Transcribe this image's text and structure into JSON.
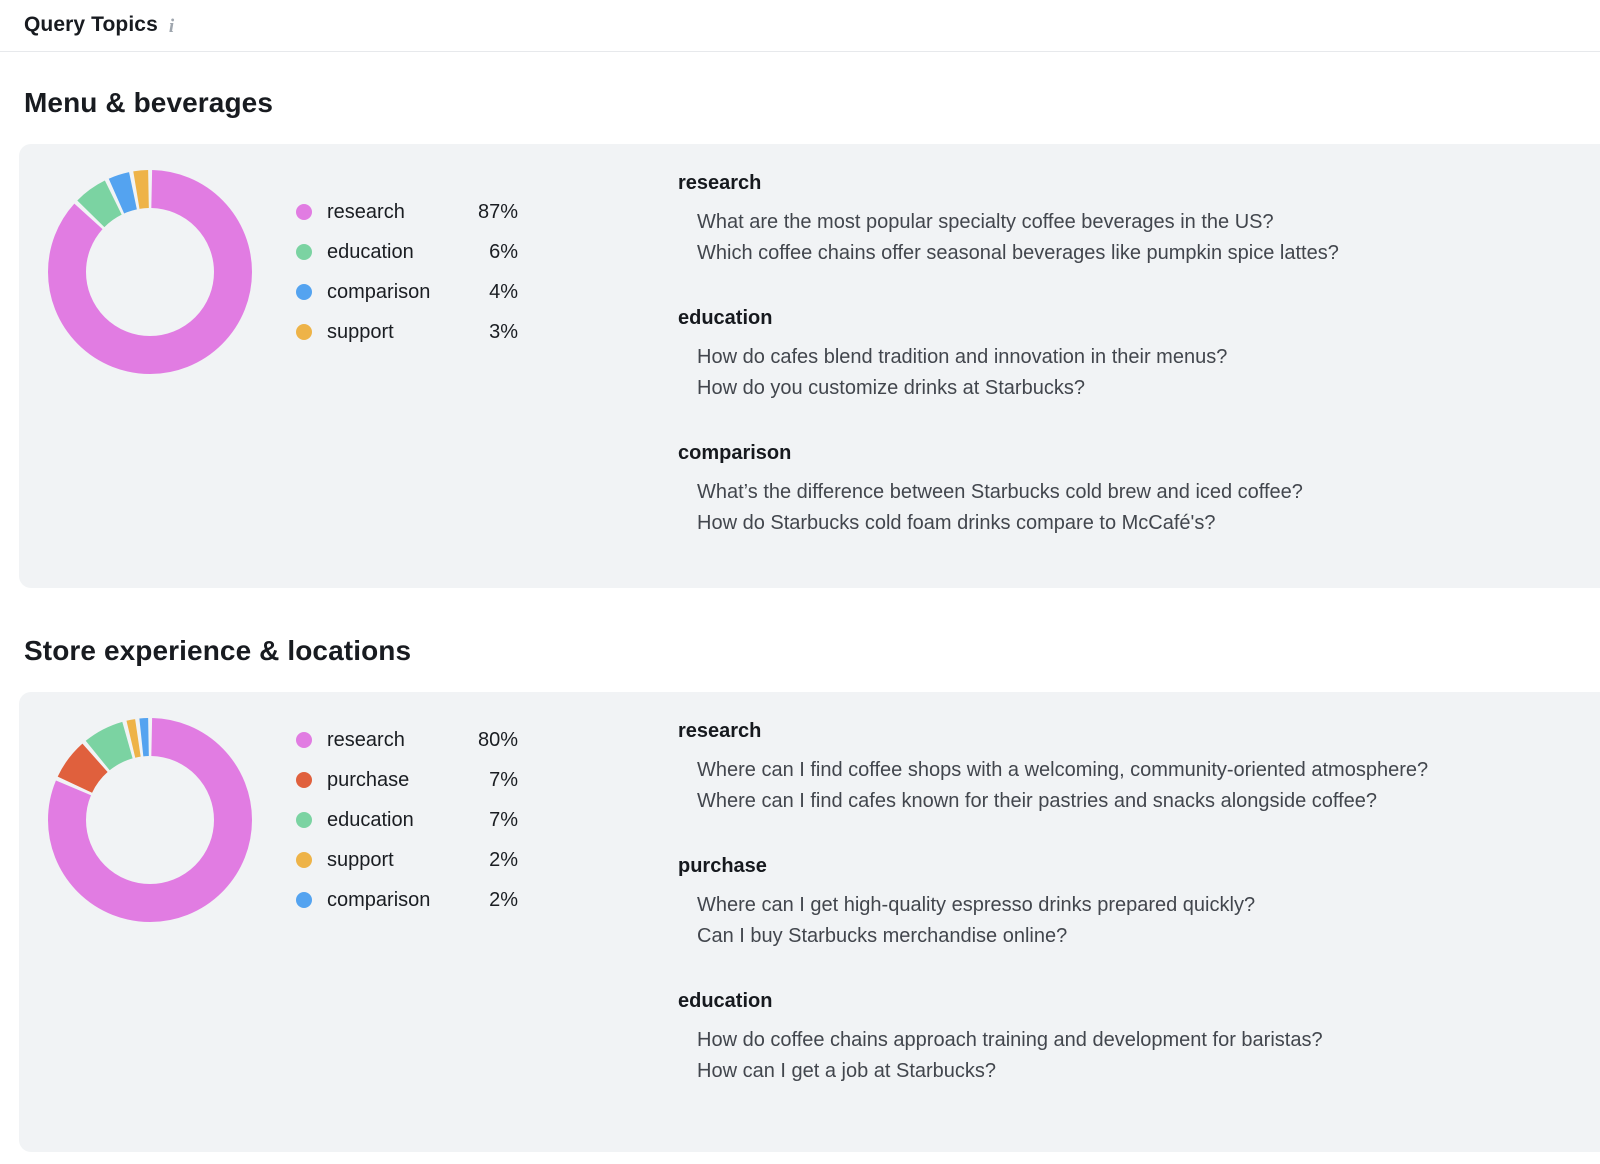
{
  "header": {
    "title": "Query Topics",
    "info_icon": "i"
  },
  "chart_data": [
    {
      "type": "donut",
      "title": "Menu & beverages",
      "legend_position": "right",
      "categories": [
        "research",
        "education",
        "comparison",
        "support"
      ],
      "values": [
        87,
        6,
        4,
        3
      ],
      "value_labels": [
        "87%",
        "6%",
        "4%",
        "3%"
      ],
      "colors": [
        "#e17ce2",
        "#7bd3a2",
        "#54a3f0",
        "#eeb348"
      ]
    },
    {
      "type": "donut",
      "title": "Store experience & locations",
      "legend_position": "right",
      "categories": [
        "research",
        "purchase",
        "education",
        "support",
        "comparison"
      ],
      "values": [
        80,
        7,
        7,
        2,
        2
      ],
      "value_labels": [
        "80%",
        "7%",
        "7%",
        "2%",
        "2%"
      ],
      "colors": [
        "#e17ce2",
        "#e0603d",
        "#7bd3a2",
        "#eeb348",
        "#54a3f0"
      ]
    }
  ],
  "sections": [
    {
      "title": "Menu & beverages",
      "chart_ref": 0,
      "topics": [
        {
          "name": "research",
          "queries": [
            "What are the most popular specialty coffee beverages in the US?",
            "Which coffee chains offer seasonal beverages like pumpkin spice lattes?"
          ]
        },
        {
          "name": "education",
          "queries": [
            "How do cafes blend tradition and innovation in their menus?",
            "How do you customize drinks at Starbucks?"
          ]
        },
        {
          "name": "comparison",
          "queries": [
            "What’s the difference between Starbucks cold brew and iced coffee?",
            "How do Starbucks cold foam drinks compare to McCafé's?"
          ]
        }
      ]
    },
    {
      "title": "Store experience & locations",
      "chart_ref": 1,
      "topics": [
        {
          "name": "research",
          "queries": [
            "Where can I find coffee shops with a welcoming, community-oriented atmosphere?",
            "Where can I find cafes known for their pastries and snacks alongside coffee?"
          ]
        },
        {
          "name": "purchase",
          "queries": [
            "Where can I get high-quality espresso drinks prepared quickly?",
            "Can I buy Starbucks merchandise online?"
          ]
        },
        {
          "name": "education",
          "queries": [
            "How do coffee chains approach training and development for baristas?",
            "How can I get a job at Starbucks?"
          ]
        }
      ]
    }
  ]
}
